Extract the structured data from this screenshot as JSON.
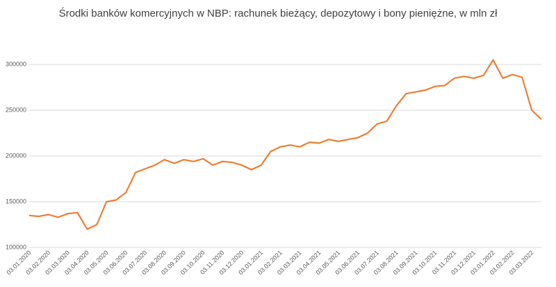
{
  "chart_data": {
    "type": "line",
    "title": "Środki banków komercyjnych w NBP: rachunek bieżący, depozytowy i bony pieniężne, w mln zł",
    "categories": [
      "03.01.2020",
      null,
      "03.02.2020",
      null,
      "03.03.2020",
      null,
      "03.04.2020",
      null,
      "03.05.2020",
      null,
      "03.06.2020",
      null,
      "03.07.2020",
      null,
      "03.08.2020",
      null,
      "03.09.2020",
      null,
      "03.10.2020",
      null,
      "03.11.2020",
      null,
      "03.12.2020",
      null,
      "03.01.2021",
      null,
      "03.02.2021",
      null,
      "03.03.2021",
      null,
      "03.04.2021",
      null,
      "03.05.2021",
      null,
      "03.06.2021",
      null,
      "03.07.2021",
      null,
      "03.08.2021",
      null,
      "03.09.2021",
      null,
      "03.10.2021",
      null,
      "03.11.2021",
      null,
      "03.12.2021",
      null,
      "03.01.2022",
      null,
      "03.02.2022",
      null,
      "03.03.2022",
      null
    ],
    "series": [
      {
        "name": "Środki banków",
        "color": "#ed7d31",
        "values": [
          135000,
          134000,
          136000,
          133000,
          137000,
          138000,
          120000,
          125000,
          150000,
          152000,
          160000,
          182000,
          186000,
          190000,
          196000,
          192000,
          196000,
          194000,
          197000,
          190000,
          194000,
          193000,
          190000,
          185000,
          190000,
          205000,
          210000,
          212000,
          210000,
          215000,
          214000,
          218000,
          216000,
          218000,
          220000,
          225000,
          235000,
          238000,
          255000,
          268000,
          270000,
          272000,
          276000,
          277000,
          285000,
          287000,
          285000,
          288000,
          305000,
          285000,
          289000,
          286000,
          250000,
          240000
        ]
      }
    ],
    "ylim": [
      100000,
      325000
    ],
    "yticks": [
      100000,
      150000,
      200000,
      250000,
      300000
    ],
    "grid": true
  }
}
